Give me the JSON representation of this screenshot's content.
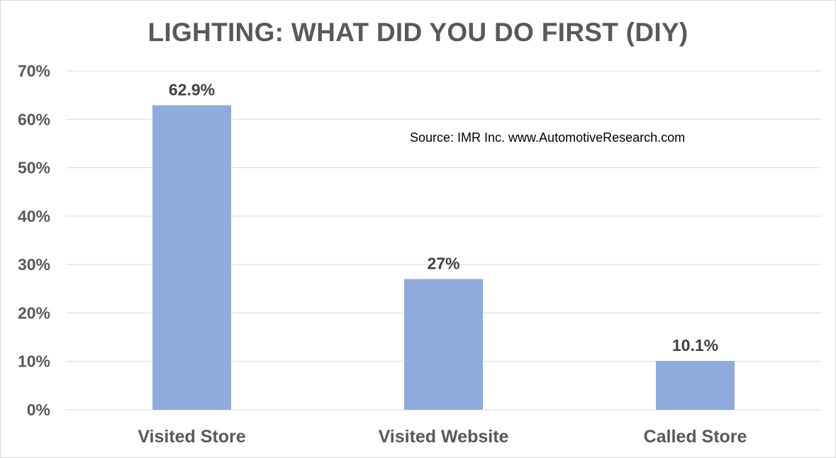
{
  "chart_data": {
    "type": "bar",
    "title": "LIGHTING: WHAT DID YOU DO FIRST (DIY)",
    "annotation": "Source: IMR Inc. www.AutomotiveResearch.com",
    "categories": [
      "Visited Store",
      "Visited Website",
      "Called Store"
    ],
    "values": [
      62.9,
      27,
      10.1
    ],
    "data_labels": [
      "62.9%",
      "27%",
      "10.1%"
    ],
    "ylim": [
      0,
      70
    ],
    "y_ticks": [
      0,
      10,
      20,
      30,
      40,
      50,
      60,
      70
    ],
    "y_tick_labels": [
      "0%",
      "10%",
      "20%",
      "30%",
      "40%",
      "50%",
      "60%",
      "70%"
    ],
    "xlabel": "",
    "ylabel": "",
    "grid": true,
    "legend": "none",
    "colors": {
      "bar": "#8faadc",
      "grid": "#d9d9d9",
      "text": "#595959",
      "data_label": "#404040"
    }
  }
}
